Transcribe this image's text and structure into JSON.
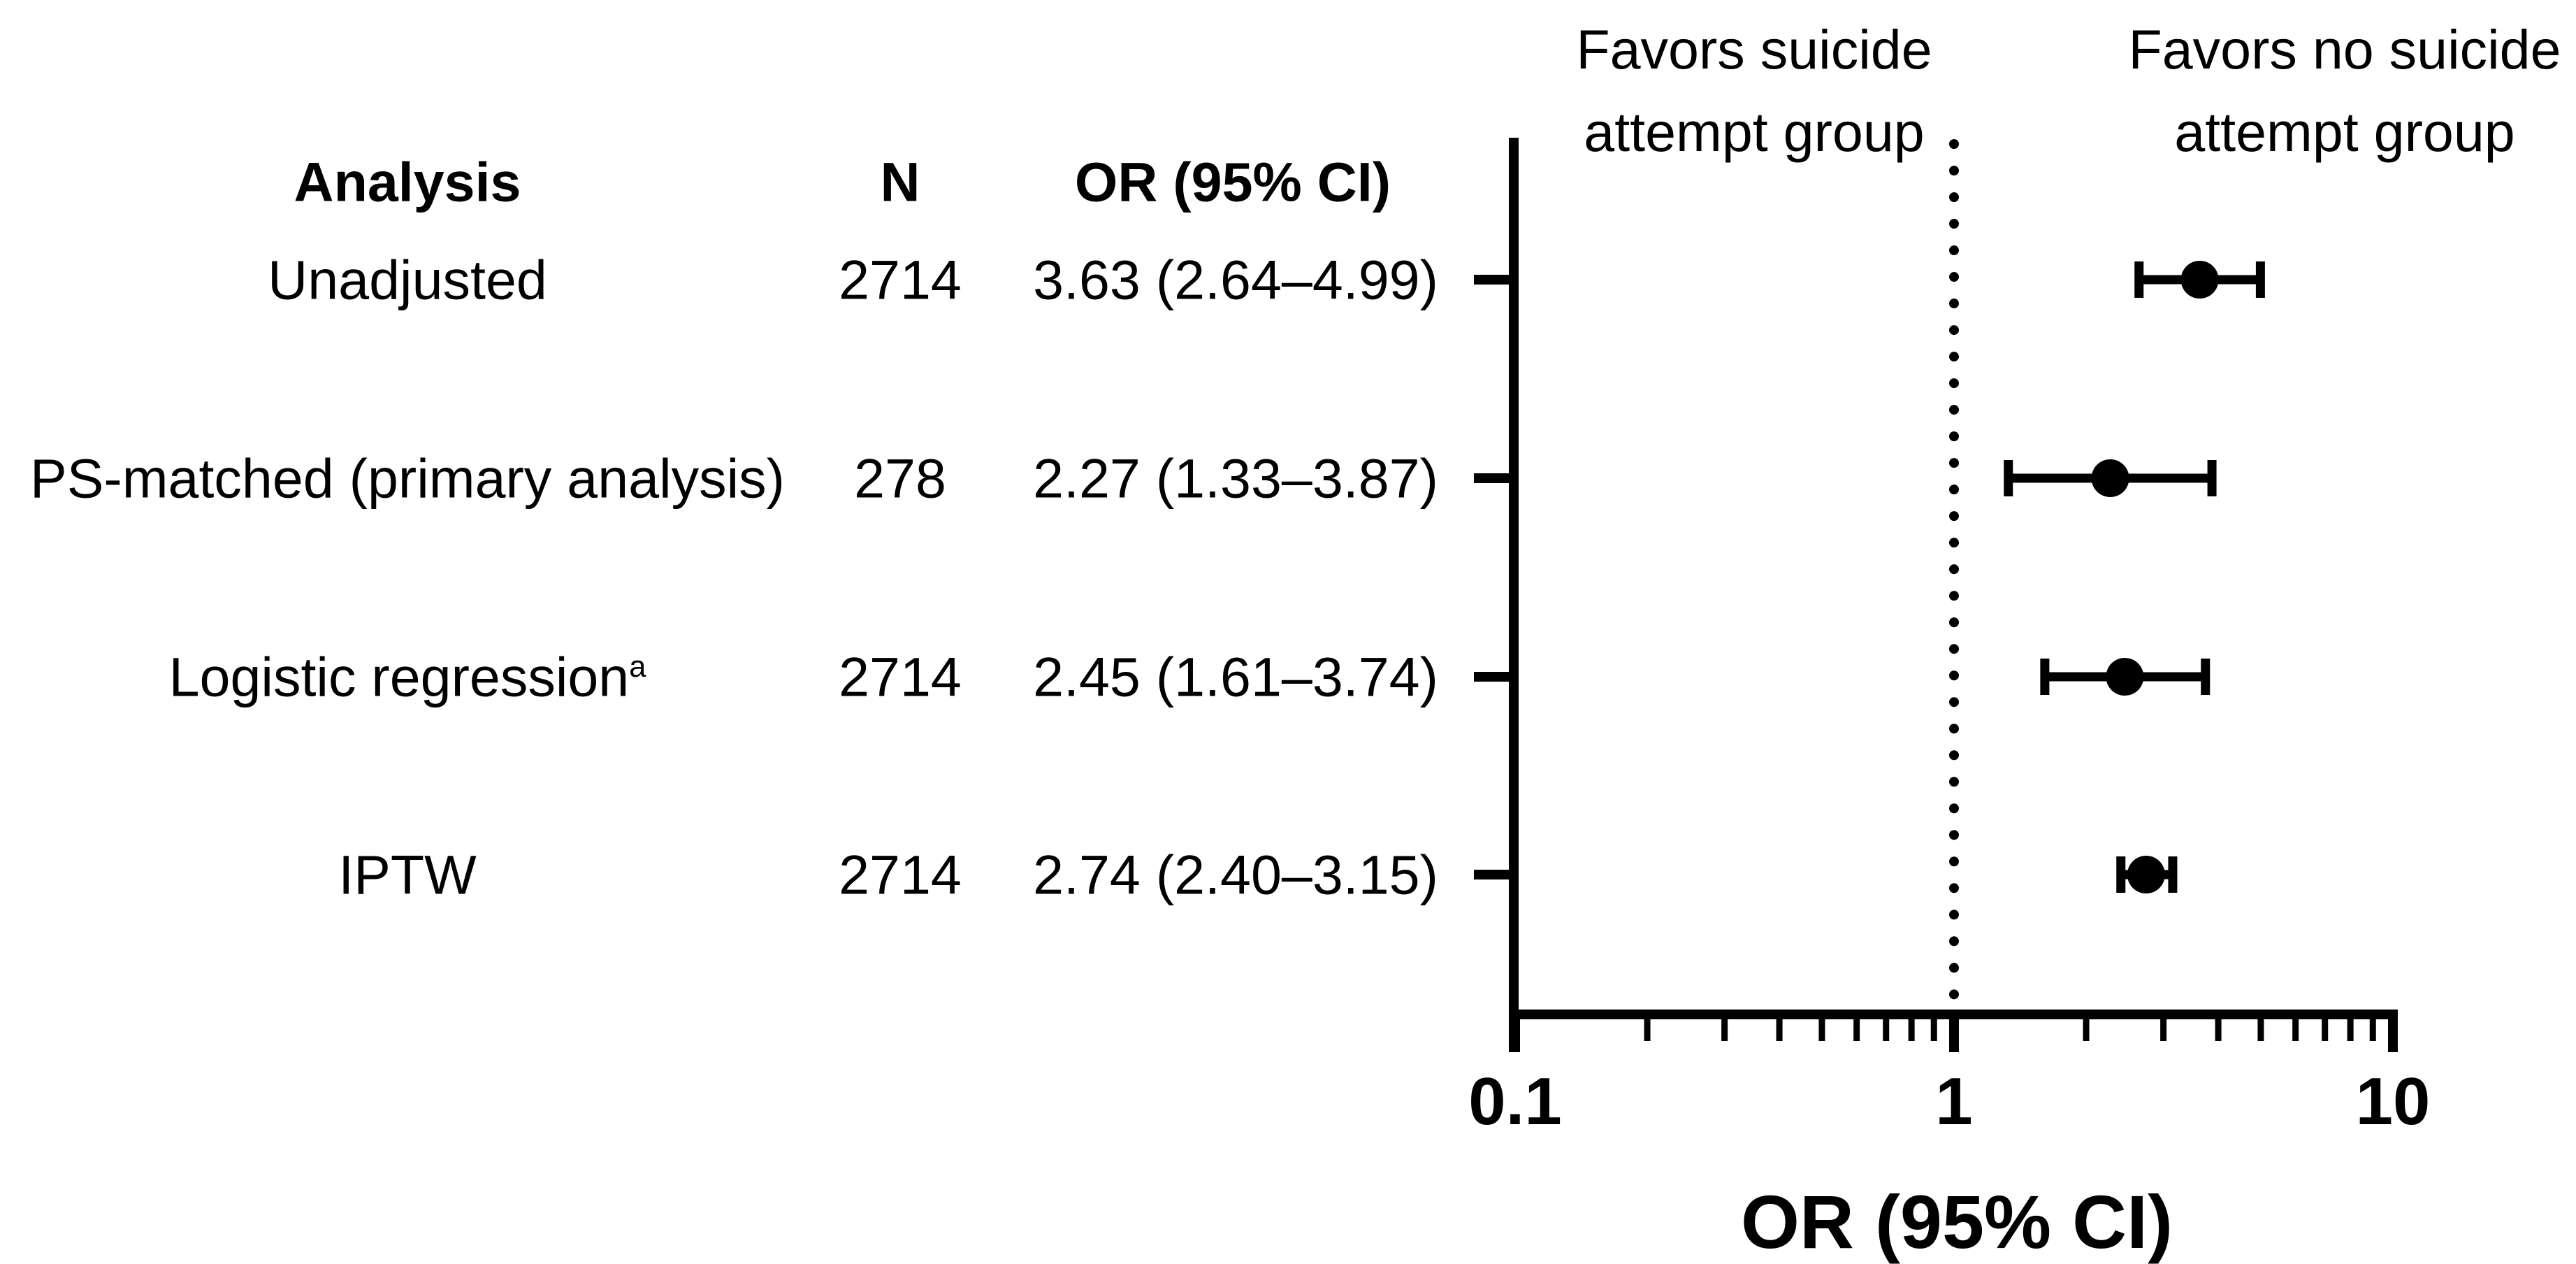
{
  "figure": {
    "background": "#ffffff",
    "foreground": "#000000"
  },
  "chart_data": {
    "type": "scatter",
    "subtype": "forest_plot",
    "orientation": "horizontal",
    "grid": false,
    "legend": null,
    "table": {
      "headers": {
        "analysis": "Analysis",
        "n": "N",
        "or_ci": "OR (95% CI)"
      },
      "rows": [
        {
          "analysis": "Unadjusted",
          "sup": "",
          "n": "2714",
          "or_ci": "3.63 (2.64–4.99)",
          "or": 3.63,
          "ci_low": 2.64,
          "ci_high": 4.99
        },
        {
          "analysis": "PS-matched (primary analysis)",
          "sup": "",
          "n": "278",
          "or_ci": "2.27 (1.33–3.87)",
          "or": 2.27,
          "ci_low": 1.33,
          "ci_high": 3.87
        },
        {
          "analysis": "Logistic regression",
          "sup": "a",
          "n": "2714",
          "or_ci": "2.45 (1.61–3.74)",
          "or": 2.45,
          "ci_low": 1.61,
          "ci_high": 3.74
        },
        {
          "analysis": "IPTW",
          "sup": "",
          "n": "2714",
          "or_ci": "2.74 (2.40–3.15)",
          "or": 2.74,
          "ci_low": 2.4,
          "ci_high": 3.15
        }
      ]
    },
    "x_axis": {
      "label": "OR (95% CI)",
      "scale": "log",
      "min": 0.1,
      "max": 10,
      "tick_values": [
        0.1,
        1,
        10
      ],
      "tick_labels": [
        "0.1",
        "1",
        "10"
      ],
      "minor_tick_values": [
        0.2,
        0.3,
        0.4,
        0.5,
        0.6,
        0.7,
        0.8,
        0.9,
        2,
        3,
        4,
        5,
        6,
        7,
        8,
        9
      ]
    },
    "reference_line": {
      "value": 1,
      "style": "dotted"
    },
    "direction_labels": {
      "left": {
        "text": "Favors suicide attempt group",
        "lines": [
          "Favors suicide",
          "attempt group"
        ]
      },
      "right": {
        "text": "Favors no suicide attempt group",
        "lines": [
          "Favors no suicide",
          "attempt group"
        ]
      }
    },
    "marker": {
      "shape": "circle",
      "color": "#000000"
    }
  }
}
